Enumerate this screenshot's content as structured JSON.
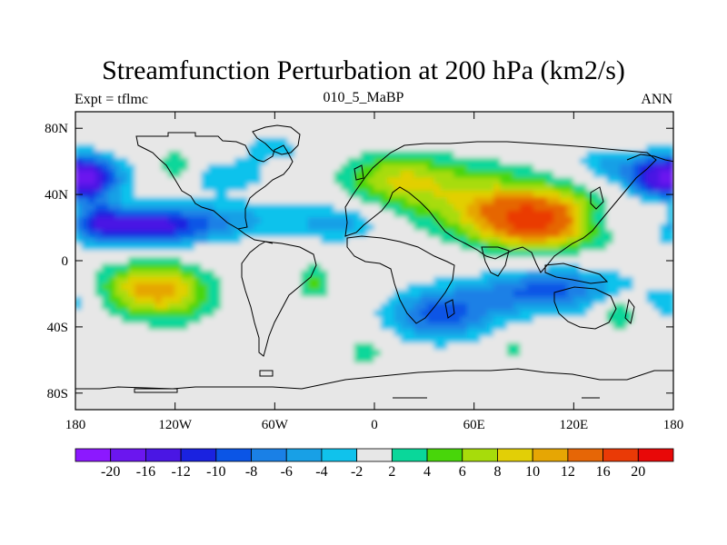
{
  "chart_data": {
    "type": "heatmap",
    "title": "Streamfunction Perturbation at 200 hPa (km2/s)",
    "left_label": "Expt = tflmc",
    "center_label": "010_5_MaBP",
    "right_label": "ANN",
    "x_ticks": [
      {
        "value": -180,
        "label": "180"
      },
      {
        "value": -120,
        "label": "120W"
      },
      {
        "value": -60,
        "label": "60W"
      },
      {
        "value": 0,
        "label": "0"
      },
      {
        "value": 60,
        "label": "60E"
      },
      {
        "value": 120,
        "label": "120E"
      },
      {
        "value": 180,
        "label": "180"
      }
    ],
    "y_ticks": [
      {
        "value": 80,
        "label": "80N"
      },
      {
        "value": 40,
        "label": "40N"
      },
      {
        "value": 0,
        "label": "0"
      },
      {
        "value": -40,
        "label": "40S"
      },
      {
        "value": -80,
        "label": "80S"
      }
    ],
    "xlim": [
      -180,
      180
    ],
    "ylim": [
      -90,
      90
    ],
    "colorbar": {
      "boundaries": [
        "-20",
        "-16",
        "-12",
        "-10",
        "-8",
        "-6",
        "-4",
        "-2",
        "2",
        "4",
        "6",
        "8",
        "10",
        "12",
        "16",
        "20"
      ],
      "colors": [
        "#8c18ff",
        "#6b16ef",
        "#4a16e4",
        "#1a22e0",
        "#0b55e6",
        "#1a80e6",
        "#18a0e6",
        "#10c2ec",
        "#e7e7e7",
        "#0ad79a",
        "#48d60a",
        "#a7dc0b",
        "#e2cf06",
        "#e6a604",
        "#e66606",
        "#ea3a06",
        "#e80808"
      ]
    },
    "anomalies": [
      {
        "lon": 98,
        "lat": 24,
        "sigma_lon": 28,
        "sigma_lat": 12,
        "amplitude": 17
      },
      {
        "lon": 55,
        "lat": 40,
        "sigma_lon": 35,
        "sigma_lat": 14,
        "amplitude": 6
      },
      {
        "lon": 12,
        "lat": 50,
        "sigma_lon": 22,
        "sigma_lat": 11,
        "amplitude": 6
      },
      {
        "lon": -135,
        "lat": -17,
        "sigma_lon": 22,
        "sigma_lat": 11,
        "amplitude": 9.5
      },
      {
        "lon": -120,
        "lat": -25,
        "sigma_lon": 18,
        "sigma_lat": 13,
        "amplitude": 3
      },
      {
        "lon": -118,
        "lat": 54,
        "sigma_lon": 9,
        "sigma_lat": 9,
        "amplitude": 5
      },
      {
        "lon": -36,
        "lat": -13,
        "sigma_lon": 7,
        "sigma_lat": 8,
        "amplitude": 5
      },
      {
        "lon": -5,
        "lat": -55,
        "sigma_lon": 9,
        "sigma_lat": 7,
        "amplitude": 3.2
      },
      {
        "lon": 83,
        "lat": -53,
        "sigma_lon": 6,
        "sigma_lat": 5,
        "amplitude": 3.2
      },
      {
        "lon": 148,
        "lat": -32,
        "sigma_lon": 9,
        "sigma_lat": 7,
        "amplitude": 5
      },
      {
        "lon": 175,
        "lat": 27,
        "sigma_lon": 8,
        "sigma_lat": 8,
        "amplitude": 3
      },
      {
        "lon": -142,
        "lat": 20,
        "sigma_lon": 30,
        "sigma_lat": 8,
        "amplitude": -12.5
      },
      {
        "lon": -90,
        "lat": 25,
        "sigma_lon": 40,
        "sigma_lat": 8,
        "amplitude": -4
      },
      {
        "lon": -20,
        "lat": 22,
        "sigma_lon": 18,
        "sigma_lat": 8,
        "amplitude": -4.5
      },
      {
        "lon": -172,
        "lat": 50,
        "sigma_lon": 14,
        "sigma_lat": 9,
        "amplitude": -11
      },
      {
        "lon": 172,
        "lat": 50,
        "sigma_lon": 16,
        "sigma_lat": 9,
        "amplitude": -11
      },
      {
        "lon": -168,
        "lat": 27,
        "sigma_lon": 10,
        "sigma_lat": 8,
        "amplitude": -4
      },
      {
        "lon": -95,
        "lat": 50,
        "sigma_lon": 24,
        "sigma_lat": 7,
        "amplitude": -3.5
      },
      {
        "lon": -60,
        "lat": 68,
        "sigma_lon": 22,
        "sigma_lat": 8,
        "amplitude": -2.5
      },
      {
        "lon": 40,
        "lat": -33,
        "sigma_lon": 22,
        "sigma_lat": 11,
        "amplitude": -9
      },
      {
        "lon": 110,
        "lat": -17,
        "sigma_lon": 30,
        "sigma_lat": 10,
        "amplitude": -7
      },
      {
        "lon": 85,
        "lat": -22,
        "sigma_lon": 25,
        "sigma_lat": 8,
        "amplitude": -3
      },
      {
        "lon": 135,
        "lat": 25,
        "sigma_lon": 14,
        "sigma_lat": 7,
        "amplitude": -3.5
      },
      {
        "lon": 140,
        "lat": 58,
        "sigma_lon": 15,
        "sigma_lat": 7,
        "amplitude": -4
      },
      {
        "lon": 178,
        "lat": -25,
        "sigma_lon": 10,
        "sigma_lat": 7,
        "amplitude": -4
      }
    ]
  }
}
